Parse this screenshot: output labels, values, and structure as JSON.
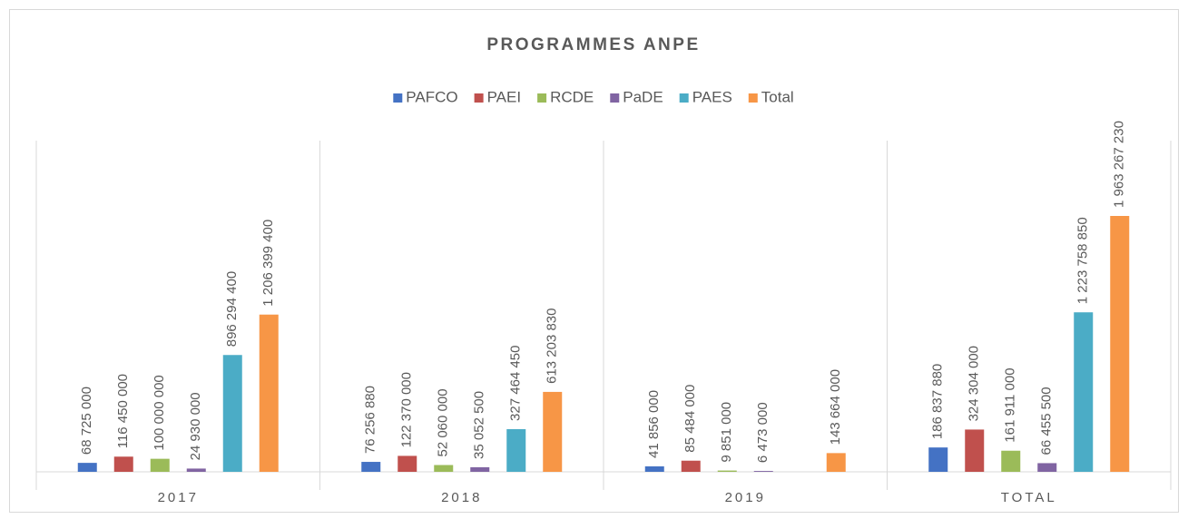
{
  "chart_data": {
    "type": "bar",
    "title": "PROGRAMMES ANPE",
    "categories": [
      "2017",
      "2018",
      "2019",
      "TOTAL"
    ],
    "series": [
      {
        "name": "PAFCO",
        "color": "#4472c4",
        "values": [
          68725000,
          76256880,
          41856000,
          186837880
        ],
        "value_labels": [
          "68 725 000",
          "76 256 880",
          "41 856 000",
          "186 837 880"
        ]
      },
      {
        "name": "PAEI",
        "color": "#c0504d",
        "values": [
          116450000,
          122370000,
          85484000,
          324304000
        ],
        "value_labels": [
          "116 450 000",
          "122 370 000",
          "85 484 000",
          "324 304 000"
        ]
      },
      {
        "name": "RCDE",
        "color": "#9bbb59",
        "values": [
          100000000,
          52060000,
          9851000,
          161911000
        ],
        "value_labels": [
          "100 000 000",
          "52 060 000",
          "9 851 000",
          "161 911 000"
        ]
      },
      {
        "name": "PaDE",
        "color": "#8064a2",
        "values": [
          24930000,
          35052500,
          6473000,
          66455500
        ],
        "value_labels": [
          "24 930 000",
          "35 052 500",
          "6 473 000",
          "66 455 500"
        ]
      },
      {
        "name": "PAES",
        "color": "#4bacc6",
        "values": [
          896294400,
          327464450,
          null,
          1223758850
        ],
        "value_labels": [
          "896 294 400",
          "327 464 450",
          null,
          "1 223 758 850"
        ]
      },
      {
        "name": "Total",
        "color": "#f79646",
        "values": [
          1206399400,
          613203830,
          143664000,
          1963267230
        ],
        "value_labels": [
          "1 206 399 400",
          "613 203 830",
          "143 664 000",
          "1 963 267 230"
        ]
      }
    ],
    "legend": "top"
  }
}
